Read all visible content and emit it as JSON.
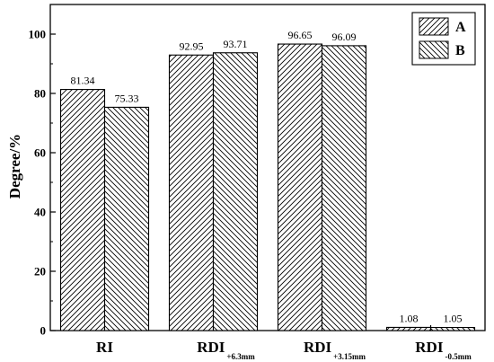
{
  "chart_data": {
    "type": "bar",
    "title": "",
    "xlabel": "",
    "ylabel": "Degree/%",
    "ylim": [
      0,
      110
    ],
    "yticks": [
      0,
      20,
      40,
      60,
      80,
      100
    ],
    "grid": false,
    "legend_position": "top-right",
    "categories": [
      {
        "main": "RI",
        "sub": ""
      },
      {
        "main": "RDI",
        "sub": "+6.3mm"
      },
      {
        "main": "RDI",
        "sub": "+3.15mm"
      },
      {
        "main": "RDI",
        "sub": "-0.5mm"
      }
    ],
    "series": [
      {
        "name": "A",
        "pattern": "forward-hatch",
        "values": [
          81.34,
          92.95,
          96.65,
          1.08
        ],
        "labels": [
          "81.34",
          "92.95",
          "96.65",
          "1.08"
        ]
      },
      {
        "name": "B",
        "pattern": "back-hatch",
        "values": [
          75.33,
          93.71,
          96.09,
          1.05
        ],
        "labels": [
          "75.33",
          "93.71",
          "96.09",
          "1.05"
        ]
      }
    ]
  },
  "colors": {
    "bar_fill": "#ffffff",
    "hatch": "#000000",
    "axis": "#000000"
  }
}
